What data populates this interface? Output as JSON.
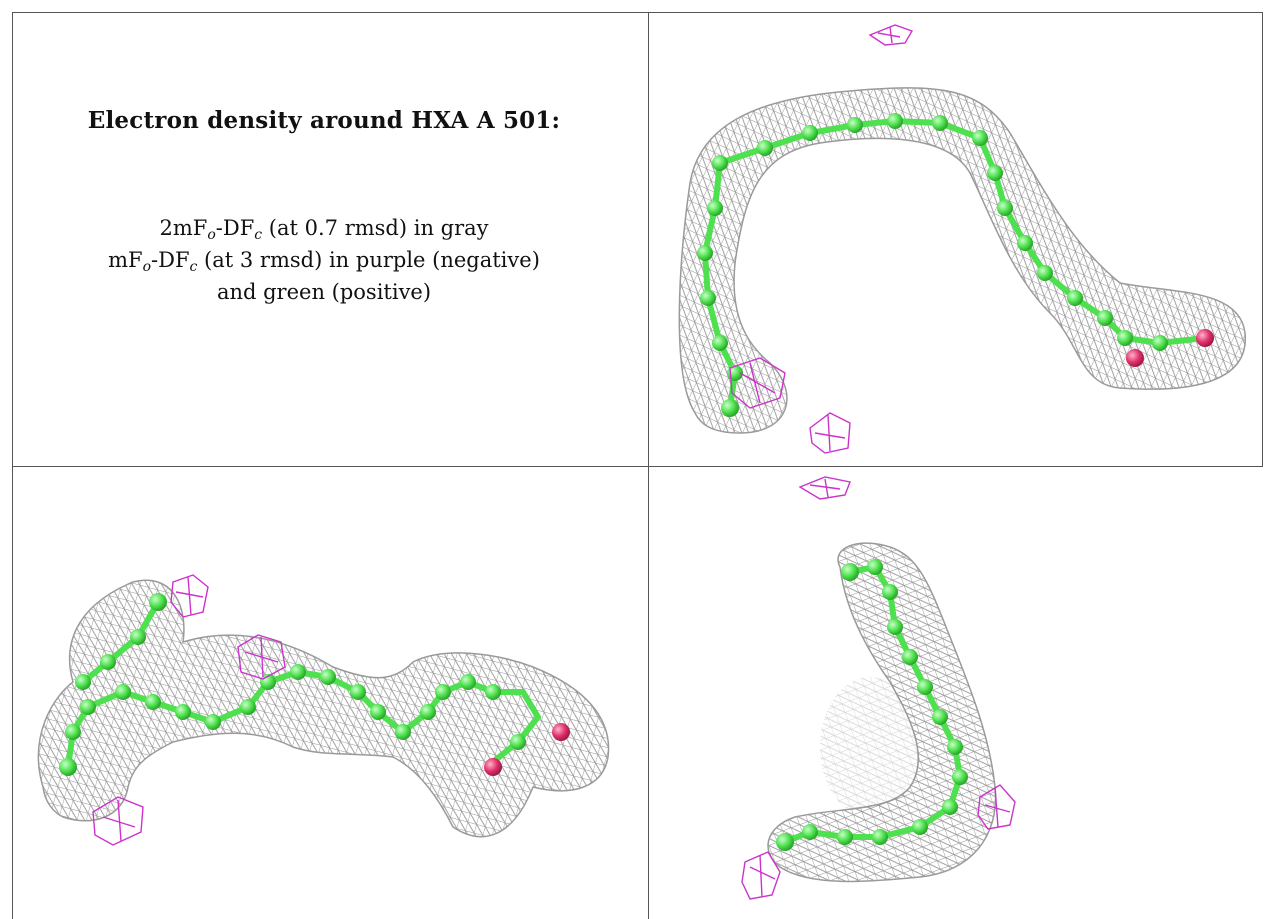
{
  "caption": {
    "title": "Electron density around HXA A 501:",
    "lines": [
      {
        "pre": "2mF",
        "sub1": "o",
        "mid": "-DF",
        "sub2": "c",
        "post": " (at 0.7 rmsd) in gray"
      },
      {
        "pre": "mF",
        "sub1": "o",
        "mid": "-DF",
        "sub2": "c",
        "post": " (at 3 rmsd) in purple (negative)"
      },
      {
        "text": "and green (positive)"
      }
    ]
  },
  "colors": {
    "density_mesh": "#8a8a8a",
    "negative_mesh": "#cc33cc",
    "ligand_carbon": "#4ee04e",
    "ligand_oxygen": "#e0306a",
    "frame": "#555555"
  },
  "views": [
    {
      "panel": "top-right",
      "ligand": "HXA A 501"
    },
    {
      "panel": "bottom-left",
      "ligand": "HXA A 501"
    },
    {
      "panel": "bottom-right",
      "ligand": "HXA A 501"
    }
  ]
}
